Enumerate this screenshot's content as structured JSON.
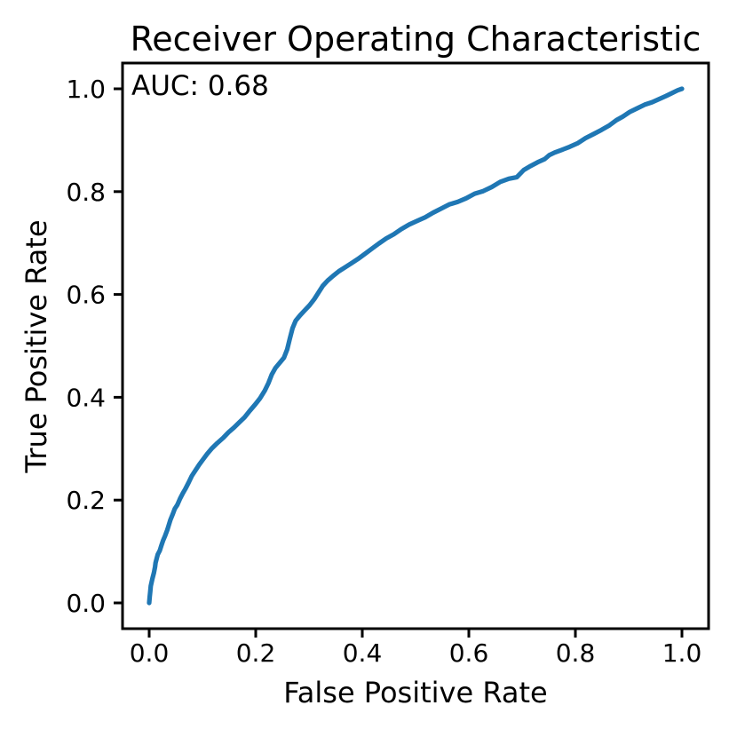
{
  "figure": {
    "kind": "matplotlib-roc-plot"
  },
  "chart_data": {
    "type": "line",
    "title": "Receiver Operating Characteristic",
    "xlabel": "False Positive Rate",
    "ylabel": "True Positive Rate",
    "annotation": "AUC: 0.68",
    "auc": 0.68,
    "line_color": "#1f77b4",
    "axis_color": "#000000",
    "background_color": "#ffffff",
    "grid": false,
    "legend_position": "none",
    "xlim": [
      -0.05,
      1.05
    ],
    "ylim": [
      -0.05,
      1.05
    ],
    "x_ticks": [
      {
        "value": 0.0,
        "label": "0.0"
      },
      {
        "value": 0.2,
        "label": "0.2"
      },
      {
        "value": 0.4,
        "label": "0.4"
      },
      {
        "value": 0.6,
        "label": "0.6"
      },
      {
        "value": 0.8,
        "label": "0.8"
      },
      {
        "value": 1.0,
        "label": "1.0"
      }
    ],
    "y_ticks": [
      {
        "value": 0.0,
        "label": "0.0"
      },
      {
        "value": 0.2,
        "label": "0.2"
      },
      {
        "value": 0.4,
        "label": "0.4"
      },
      {
        "value": 0.6,
        "label": "0.6"
      },
      {
        "value": 0.8,
        "label": "0.8"
      },
      {
        "value": 1.0,
        "label": "1.0"
      }
    ],
    "series": [
      {
        "name": "ROC curve (FPR, TPR)",
        "points": [
          [
            0.0,
            0.0
          ],
          [
            0.001,
            0.012
          ],
          [
            0.002,
            0.022
          ],
          [
            0.003,
            0.033
          ],
          [
            0.006,
            0.047
          ],
          [
            0.009,
            0.059
          ],
          [
            0.011,
            0.07
          ],
          [
            0.012,
            0.078
          ],
          [
            0.014,
            0.086
          ],
          [
            0.016,
            0.094
          ],
          [
            0.02,
            0.102
          ],
          [
            0.023,
            0.112
          ],
          [
            0.026,
            0.121
          ],
          [
            0.03,
            0.131
          ],
          [
            0.034,
            0.142
          ],
          [
            0.037,
            0.152
          ],
          [
            0.04,
            0.162
          ],
          [
            0.044,
            0.172
          ],
          [
            0.048,
            0.183
          ],
          [
            0.053,
            0.191
          ],
          [
            0.058,
            0.203
          ],
          [
            0.063,
            0.213
          ],
          [
            0.068,
            0.222
          ],
          [
            0.074,
            0.234
          ],
          [
            0.08,
            0.247
          ],
          [
            0.087,
            0.258
          ],
          [
            0.094,
            0.269
          ],
          [
            0.101,
            0.279
          ],
          [
            0.109,
            0.29
          ],
          [
            0.118,
            0.301
          ],
          [
            0.128,
            0.311
          ],
          [
            0.139,
            0.321
          ],
          [
            0.149,
            0.332
          ],
          [
            0.159,
            0.341
          ],
          [
            0.169,
            0.351
          ],
          [
            0.179,
            0.361
          ],
          [
            0.189,
            0.374
          ],
          [
            0.199,
            0.386
          ],
          [
            0.208,
            0.398
          ],
          [
            0.217,
            0.413
          ],
          [
            0.224,
            0.428
          ],
          [
            0.23,
            0.444
          ],
          [
            0.237,
            0.457
          ],
          [
            0.245,
            0.467
          ],
          [
            0.253,
            0.477
          ],
          [
            0.259,
            0.493
          ],
          [
            0.264,
            0.514
          ],
          [
            0.269,
            0.534
          ],
          [
            0.275,
            0.549
          ],
          [
            0.283,
            0.559
          ],
          [
            0.292,
            0.569
          ],
          [
            0.301,
            0.579
          ],
          [
            0.31,
            0.591
          ],
          [
            0.318,
            0.604
          ],
          [
            0.326,
            0.617
          ],
          [
            0.335,
            0.627
          ],
          [
            0.345,
            0.636
          ],
          [
            0.356,
            0.645
          ],
          [
            0.368,
            0.653
          ],
          [
            0.38,
            0.661
          ],
          [
            0.392,
            0.669
          ],
          [
            0.405,
            0.679
          ],
          [
            0.418,
            0.689
          ],
          [
            0.431,
            0.699
          ],
          [
            0.445,
            0.709
          ],
          [
            0.459,
            0.717
          ],
          [
            0.473,
            0.727
          ],
          [
            0.488,
            0.736
          ],
          [
            0.503,
            0.743
          ],
          [
            0.518,
            0.75
          ],
          [
            0.533,
            0.759
          ],
          [
            0.548,
            0.767
          ],
          [
            0.563,
            0.775
          ],
          [
            0.579,
            0.78
          ],
          [
            0.595,
            0.787
          ],
          [
            0.611,
            0.796
          ],
          [
            0.627,
            0.801
          ],
          [
            0.643,
            0.809
          ],
          [
            0.659,
            0.819
          ],
          [
            0.675,
            0.825
          ],
          [
            0.69,
            0.828
          ],
          [
            0.703,
            0.842
          ],
          [
            0.716,
            0.85
          ],
          [
            0.729,
            0.857
          ],
          [
            0.742,
            0.863
          ],
          [
            0.751,
            0.871
          ],
          [
            0.761,
            0.876
          ],
          [
            0.774,
            0.881
          ],
          [
            0.789,
            0.887
          ],
          [
            0.804,
            0.894
          ],
          [
            0.819,
            0.904
          ],
          [
            0.834,
            0.912
          ],
          [
            0.849,
            0.92
          ],
          [
            0.864,
            0.929
          ],
          [
            0.877,
            0.939
          ],
          [
            0.889,
            0.946
          ],
          [
            0.902,
            0.955
          ],
          [
            0.916,
            0.962
          ],
          [
            0.93,
            0.969
          ],
          [
            0.944,
            0.974
          ],
          [
            0.957,
            0.98
          ],
          [
            0.97,
            0.986
          ],
          [
            0.982,
            0.992
          ],
          [
            0.992,
            0.997
          ],
          [
            1.0,
            1.0
          ]
        ]
      }
    ]
  }
}
